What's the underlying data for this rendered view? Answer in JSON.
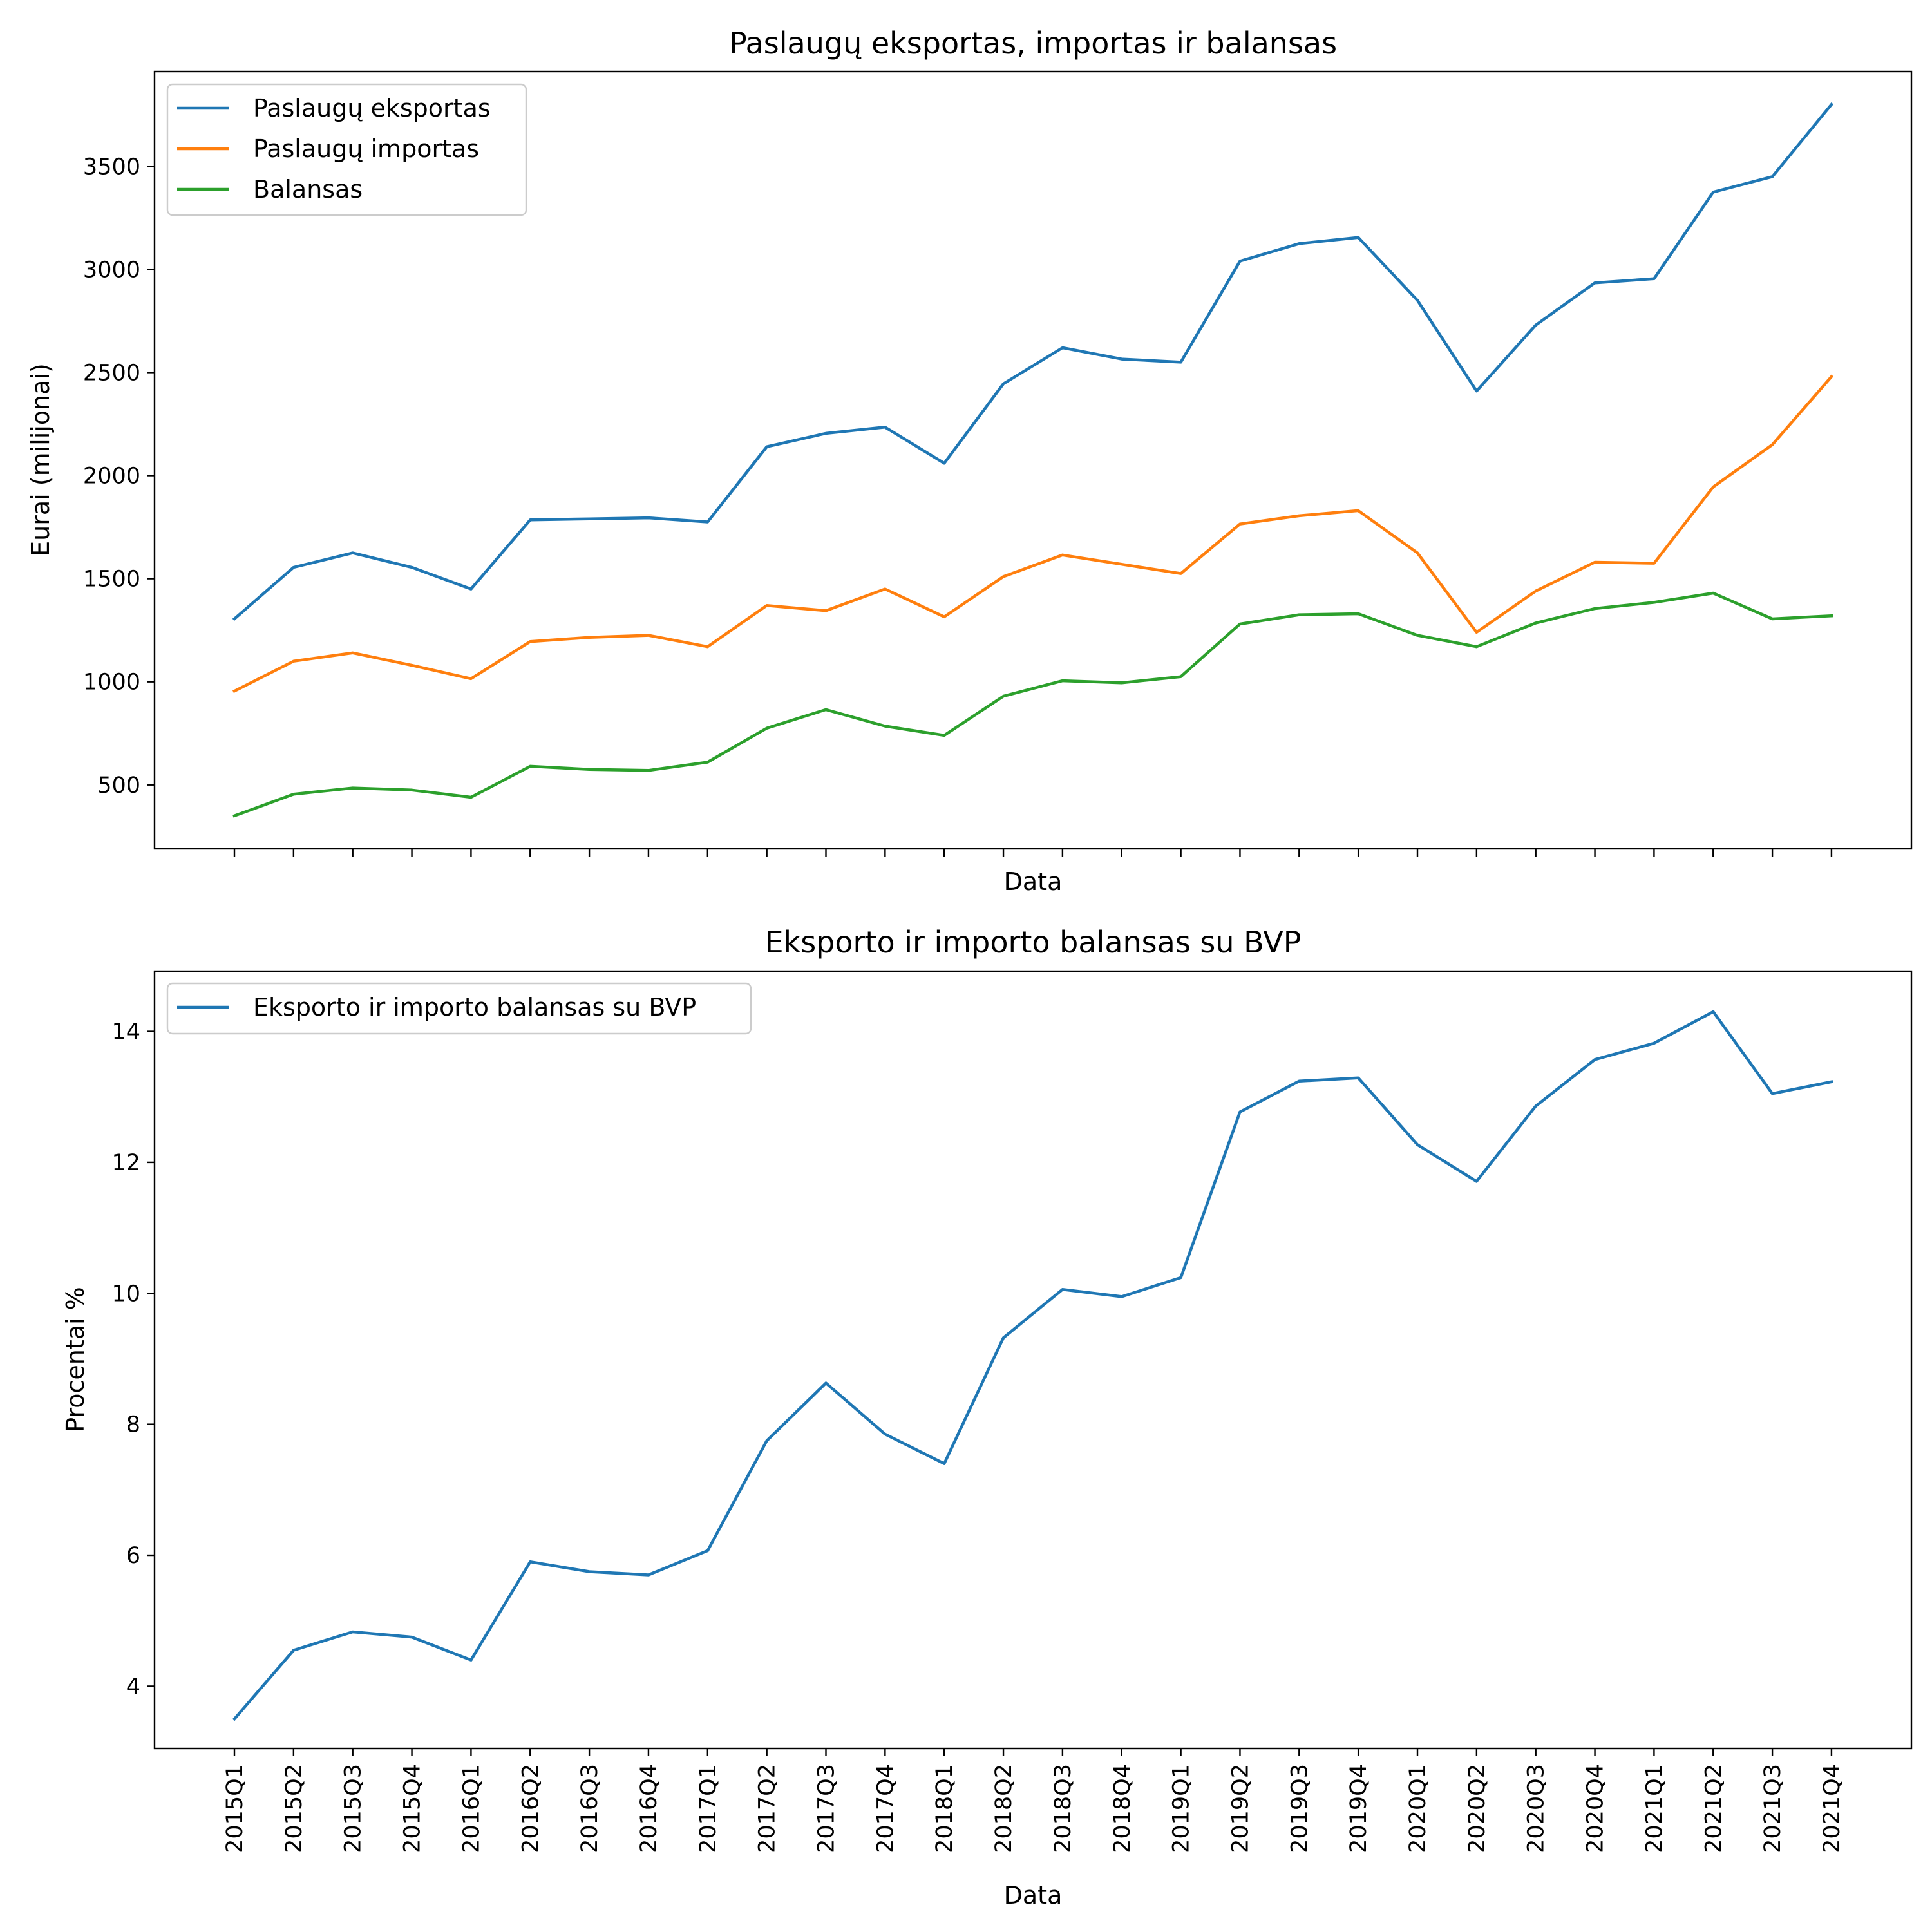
{
  "chart_data": [
    {
      "type": "line",
      "title": "Paslaugų eksportas, importas ir balansas",
      "xlabel": "Data",
      "ylabel": "Eurai (milijonai)",
      "ylim": [
        190,
        3960
      ],
      "yticks": [
        500,
        1000,
        1500,
        2000,
        2500,
        3000,
        3500
      ],
      "x_tick_labels_shown": false,
      "legend": "top-left",
      "grid": false,
      "x": [
        "2015Q1",
        "2015Q2",
        "2015Q3",
        "2015Q4",
        "2016Q1",
        "2016Q2",
        "2016Q3",
        "2016Q4",
        "2017Q1",
        "2017Q2",
        "2017Q3",
        "2017Q4",
        "2018Q1",
        "2018Q2",
        "2018Q3",
        "2018Q4",
        "2019Q1",
        "2019Q2",
        "2019Q3",
        "2019Q4",
        "2020Q1",
        "2020Q2",
        "2020Q3",
        "2020Q4",
        "2021Q1",
        "2021Q2",
        "2021Q3",
        "2021Q4"
      ],
      "series": [
        {
          "name": "Paslaugų eksportas",
          "color": "#1f77b4",
          "values": [
            1305,
            1555,
            1625,
            1555,
            1450,
            1785,
            1790,
            1795,
            1775,
            2140,
            2205,
            2235,
            2060,
            2445,
            2620,
            2565,
            2550,
            3040,
            3125,
            3155,
            2850,
            2410,
            2730,
            2935,
            2955,
            3375,
            3450,
            3800
          ]
        },
        {
          "name": "Paslaugų importas",
          "color": "#ff7f0e",
          "values": [
            955,
            1100,
            1140,
            1080,
            1015,
            1195,
            1215,
            1225,
            1170,
            1370,
            1345,
            1450,
            1315,
            1510,
            1615,
            1570,
            1525,
            1765,
            1805,
            1830,
            1625,
            1240,
            1440,
            1580,
            1575,
            1945,
            2150,
            2480
          ]
        },
        {
          "name": "Balansas",
          "color": "#2ca02c",
          "values": [
            350,
            455,
            485,
            475,
            440,
            590,
            575,
            570,
            610,
            775,
            865,
            785,
            740,
            930,
            1005,
            995,
            1025,
            1280,
            1325,
            1330,
            1225,
            1170,
            1285,
            1355,
            1385,
            1430,
            1305,
            1320
          ]
        }
      ]
    },
    {
      "type": "line",
      "title": "Eksporto ir importo balansas su BVP",
      "xlabel": "Data",
      "ylabel": "Procentai %",
      "ylim": [
        3.05,
        14.92
      ],
      "yticks": [
        4,
        6,
        8,
        10,
        12,
        14
      ],
      "x_tick_labels_shown": true,
      "legend": "top-left",
      "grid": false,
      "x": [
        "2015Q1",
        "2015Q2",
        "2015Q3",
        "2015Q4",
        "2016Q1",
        "2016Q2",
        "2016Q3",
        "2016Q4",
        "2017Q1",
        "2017Q2",
        "2017Q3",
        "2017Q4",
        "2018Q1",
        "2018Q2",
        "2018Q3",
        "2018Q4",
        "2019Q1",
        "2019Q2",
        "2019Q3",
        "2019Q4",
        "2020Q1",
        "2020Q2",
        "2020Q3",
        "2020Q4",
        "2021Q1",
        "2021Q2",
        "2021Q3",
        "2021Q4"
      ],
      "series": [
        {
          "name": "Eksporto ir importo balansas su BVP",
          "color": "#1f77b4",
          "values": [
            3.5,
            4.55,
            4.83,
            4.75,
            4.4,
            5.9,
            5.75,
            5.7,
            6.07,
            7.75,
            8.63,
            7.85,
            7.4,
            9.32,
            10.06,
            9.95,
            10.24,
            12.77,
            13.24,
            13.29,
            12.27,
            11.71,
            12.86,
            13.57,
            13.82,
            14.3,
            13.05,
            13.23
          ]
        }
      ]
    }
  ]
}
